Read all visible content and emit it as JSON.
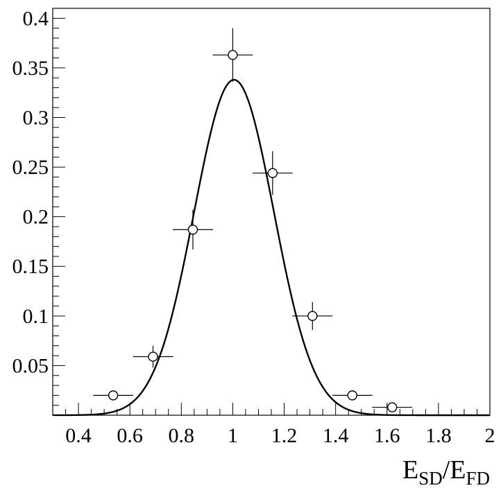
{
  "chart_data": {
    "type": "scatter",
    "title": "",
    "xlabel": "E_SD/E_FD",
    "xlabel_parts": {
      "main1": "E",
      "sub1": "SD",
      "sep": "/E",
      "sub2": "FD"
    },
    "ylabel": "",
    "xlim": [
      0.3,
      2.0
    ],
    "ylim": [
      0.0,
      0.41
    ],
    "x_ticks": [
      0.4,
      0.6,
      0.8,
      1.0,
      1.2,
      1.4,
      1.6,
      1.8,
      2.0
    ],
    "x_tick_labels": [
      "0.4",
      "0.6",
      "0.8",
      "1",
      "1.2",
      "1.4",
      "1.6",
      "1.8",
      "2"
    ],
    "y_ticks": [
      0.05,
      0.1,
      0.15,
      0.2,
      0.25,
      0.3,
      0.35,
      0.4
    ],
    "y_tick_labels": [
      "0.05",
      "0.1",
      "0.15",
      "0.2",
      "0.25",
      "0.3",
      "0.35",
      "0.4"
    ],
    "grid": false,
    "series": [
      {
        "kind": "points-with-errors",
        "marker": "open-circle",
        "points": [
          {
            "x": 0.535,
            "y": 0.02,
            "xerr": 0.078,
            "yerr": 0.005
          },
          {
            "x": 0.69,
            "y": 0.059,
            "xerr": 0.078,
            "yerr": 0.011
          },
          {
            "x": 0.845,
            "y": 0.187,
            "xerr": 0.078,
            "yerr": 0.02
          },
          {
            "x": 1.0,
            "y": 0.363,
            "xerr": 0.078,
            "yerr": 0.027
          },
          {
            "x": 1.155,
            "y": 0.244,
            "xerr": 0.078,
            "yerr": 0.022
          },
          {
            "x": 1.31,
            "y": 0.1,
            "xerr": 0.078,
            "yerr": 0.014
          },
          {
            "x": 1.465,
            "y": 0.02,
            "xerr": 0.078,
            "yerr": 0.005
          },
          {
            "x": 1.62,
            "y": 0.008,
            "xerr": 0.078,
            "yerr": 0.003
          }
        ]
      },
      {
        "kind": "gaussian-fit",
        "amplitude": 0.338,
        "mean": 1.005,
        "sigma": 0.155,
        "x_range": [
          0.3,
          2.0
        ]
      }
    ]
  }
}
